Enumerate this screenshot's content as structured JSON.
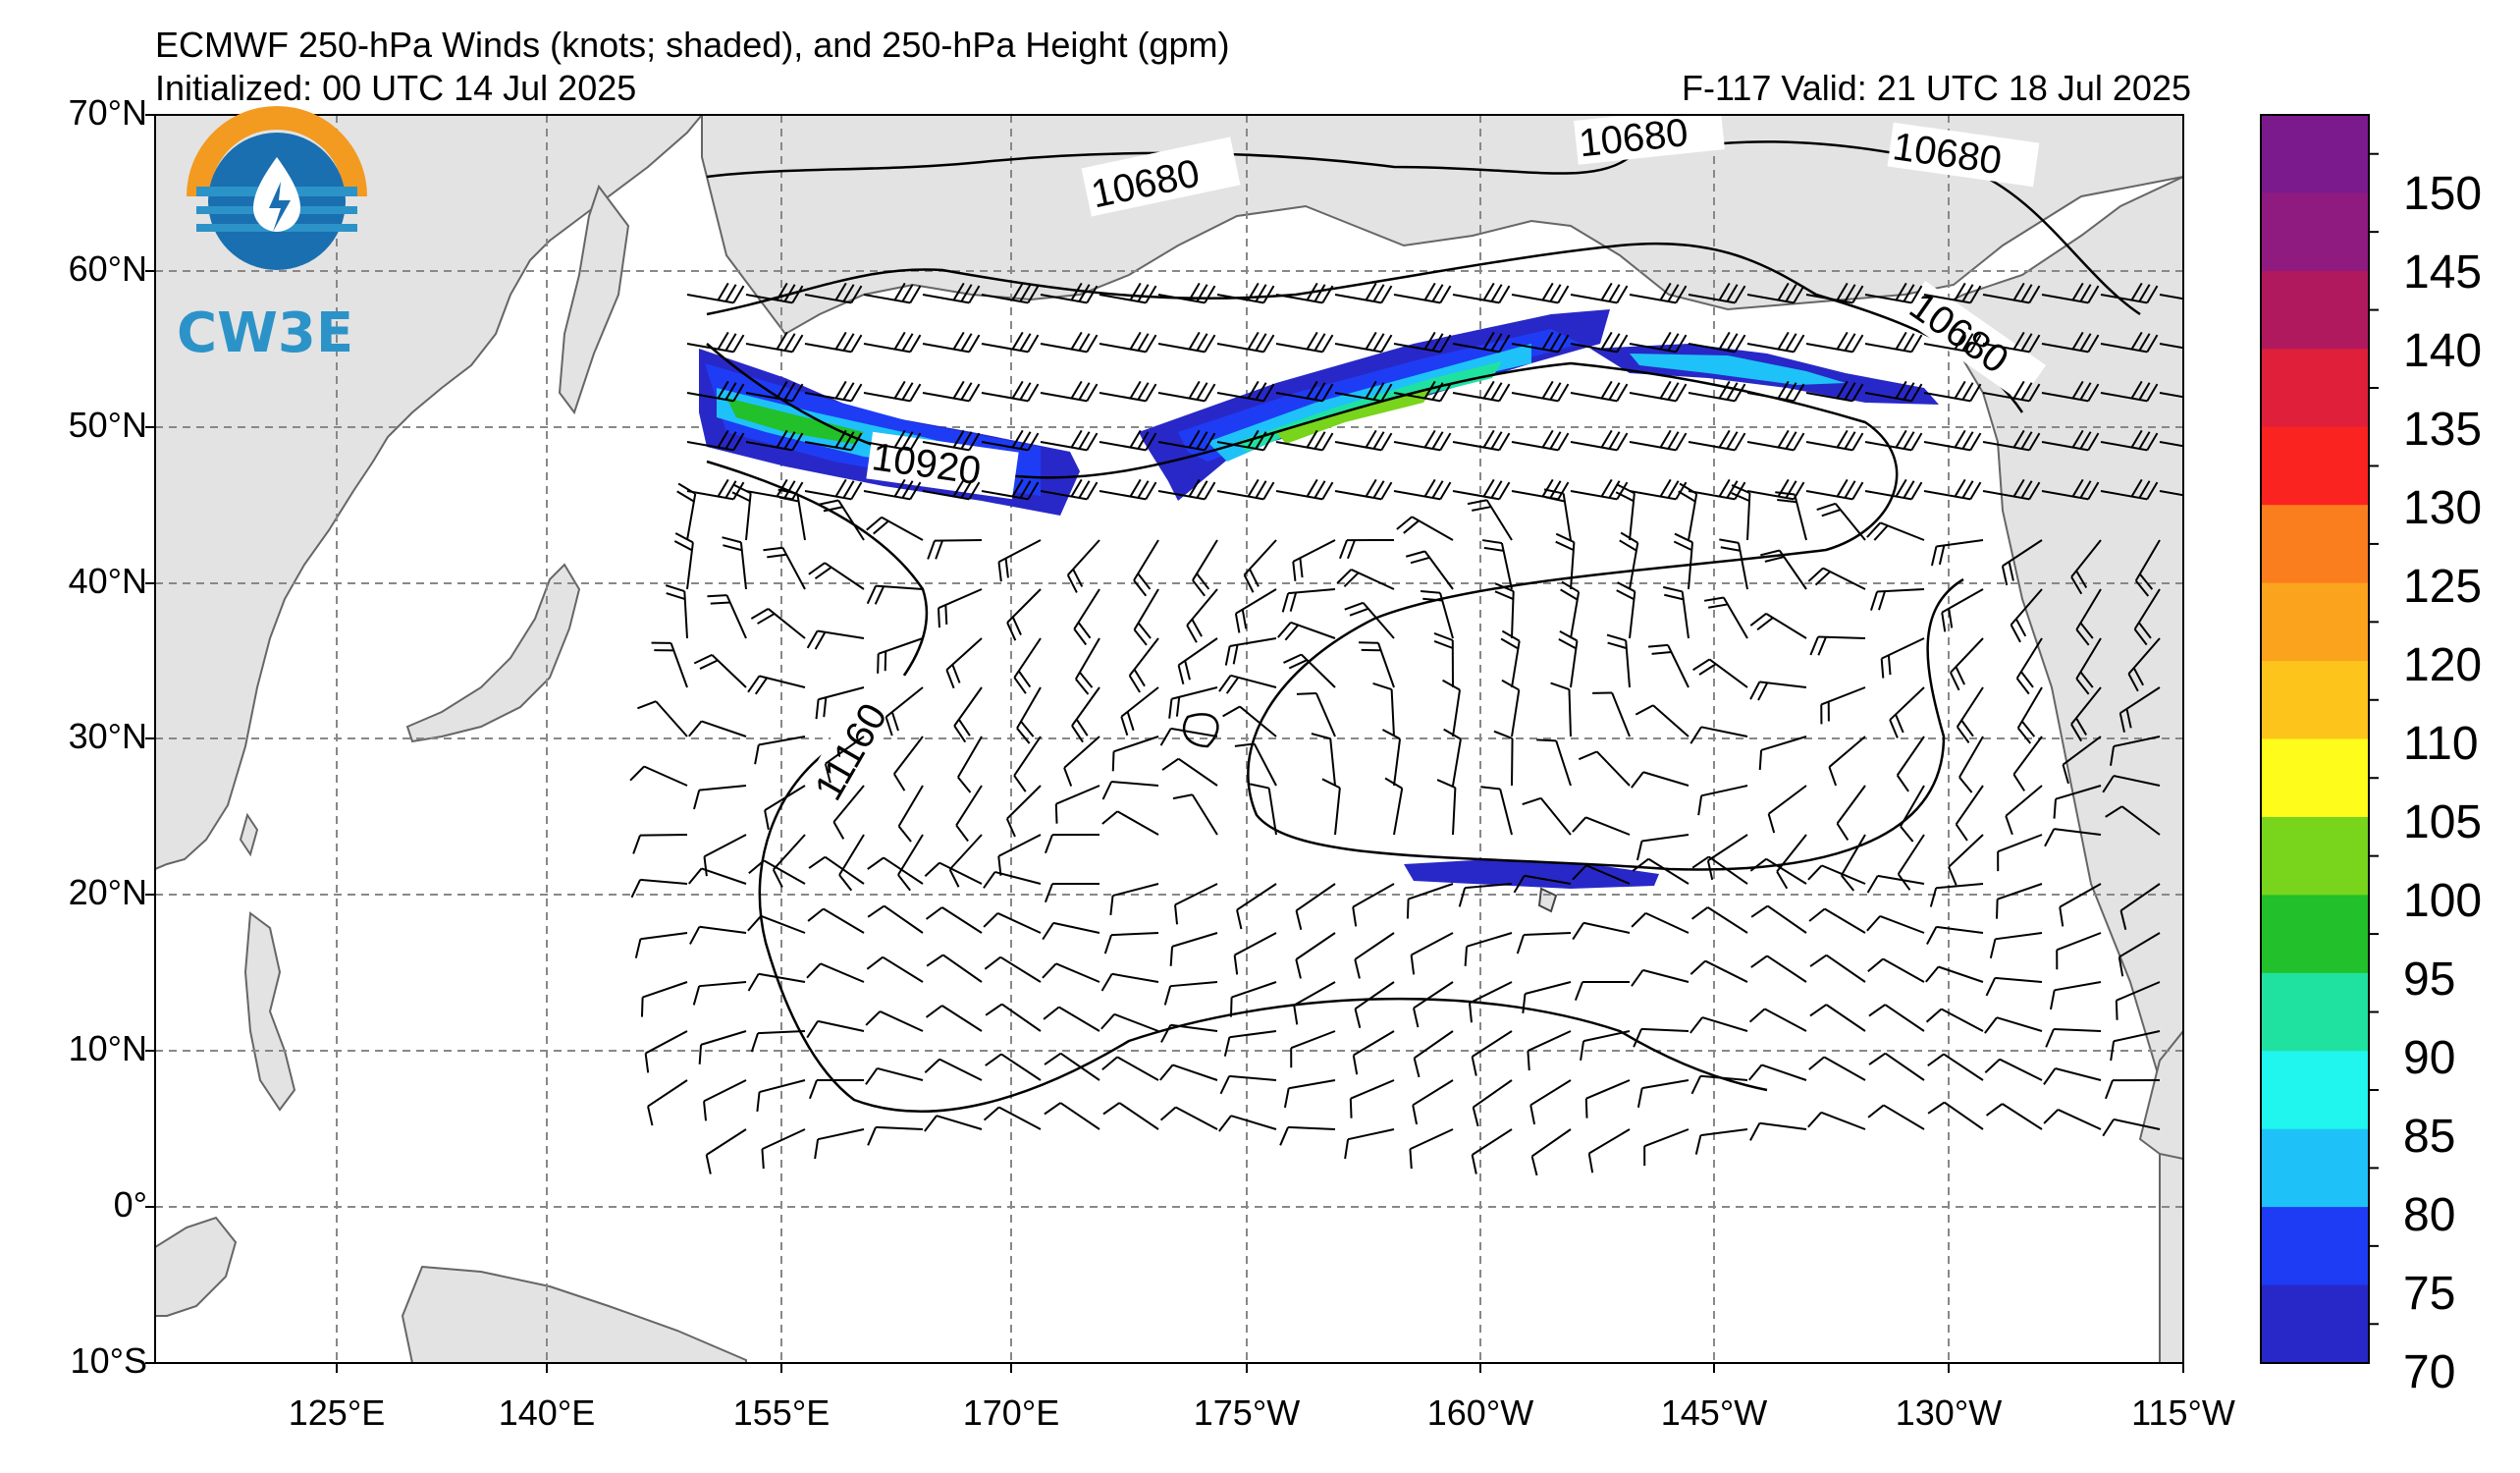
{
  "header": {
    "title": "ECMWF 250-hPa Winds (knots; shaded), and 250-hPa Height (gpm)",
    "initialized": "Initialized: 00 UTC 14 Jul 2025",
    "valid": "F-117  Valid: 21 UTC 18 Jul 2025"
  },
  "logo": {
    "text": "CW3E"
  },
  "axes": {
    "lat_labels": [
      "70°N",
      "60°N",
      "50°N",
      "40°N",
      "30°N",
      "20°N",
      "10°N",
      "0°",
      "10°S"
    ],
    "lon_labels": [
      "125°E",
      "140°E",
      "155°E",
      "170°E",
      "175°W",
      "160°W",
      "145°W",
      "130°W",
      "115°W"
    ]
  },
  "contour_labels": {
    "c1": "10680",
    "c2": "10680",
    "c3": "10680",
    "c4": "10680",
    "c5": "10920",
    "c6": "11160"
  },
  "colorbar": {
    "labels": [
      "150",
      "145",
      "140",
      "135",
      "130",
      "125",
      "120",
      "110",
      "105",
      "100",
      "95",
      "90",
      "85",
      "80",
      "75",
      "70"
    ],
    "colors": [
      "#7b1a8c",
      "#8f1a80",
      "#b0195e",
      "#e0203a",
      "#fb2320",
      "#fb7e1e",
      "#fba31d",
      "#fdc41c",
      "#fdfc1a",
      "#79d41c",
      "#22c02a",
      "#20e2a0",
      "#20f5ee",
      "#1ec2f8",
      "#1f3cf5",
      "#2828c8"
    ]
  },
  "colors": {
    "land": "#e3e3e3",
    "ocean": "#ffffff",
    "grid": "#888888"
  }
}
